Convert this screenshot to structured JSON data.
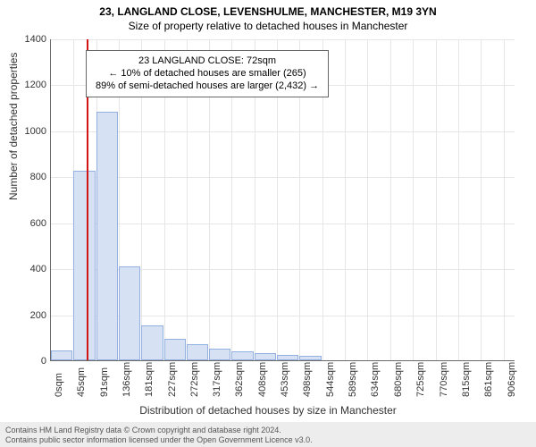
{
  "title_line1": "23, LANGLAND CLOSE, LEVENSHULME, MANCHESTER, M19 3YN",
  "title_line2": "Size of property relative to detached houses in Manchester",
  "y_axis_title": "Number of detached properties",
  "x_axis_title": "Distribution of detached houses by size in Manchester",
  "infobox": {
    "line1": "23 LANGLAND CLOSE: 72sqm",
    "line2": "← 10% of detached houses are smaller (265)",
    "line3": "89% of semi-detached houses are larger (2,432) →"
  },
  "chart": {
    "type": "histogram",
    "x_min": 0,
    "x_max": 930,
    "y_min": 0,
    "y_max": 1400,
    "y_tick_step": 200,
    "x_ticks": [
      0,
      45,
      91,
      136,
      181,
      227,
      272,
      317,
      362,
      408,
      453,
      498,
      544,
      589,
      634,
      680,
      725,
      770,
      815,
      861,
      906
    ],
    "x_tick_suffix": "sqm",
    "bar_color": "#d6e1f4",
    "bar_border_color": "#93b0e0",
    "marker_color": "#d41515",
    "marker_x": 72,
    "grid_color": "#e6e6e6",
    "axis_color": "#6a6a6a",
    "background_color": "#ffffff",
    "bars": [
      {
        "x0": 0,
        "x1": 45,
        "y": 42
      },
      {
        "x0": 45,
        "x1": 91,
        "y": 825
      },
      {
        "x0": 91,
        "x1": 136,
        "y": 1080
      },
      {
        "x0": 136,
        "x1": 181,
        "y": 410
      },
      {
        "x0": 181,
        "x1": 227,
        "y": 150
      },
      {
        "x0": 227,
        "x1": 272,
        "y": 95
      },
      {
        "x0": 272,
        "x1": 317,
        "y": 70
      },
      {
        "x0": 317,
        "x1": 362,
        "y": 50
      },
      {
        "x0": 362,
        "x1": 408,
        "y": 40
      },
      {
        "x0": 408,
        "x1": 453,
        "y": 30
      },
      {
        "x0": 453,
        "x1": 498,
        "y": 22
      },
      {
        "x0": 498,
        "x1": 544,
        "y": 18
      }
    ]
  },
  "footer": {
    "line1": "Contains HM Land Registry data © Crown copyright and database right 2024.",
    "line2": "Contains public sector information licensed under the Open Government Licence v3.0."
  }
}
